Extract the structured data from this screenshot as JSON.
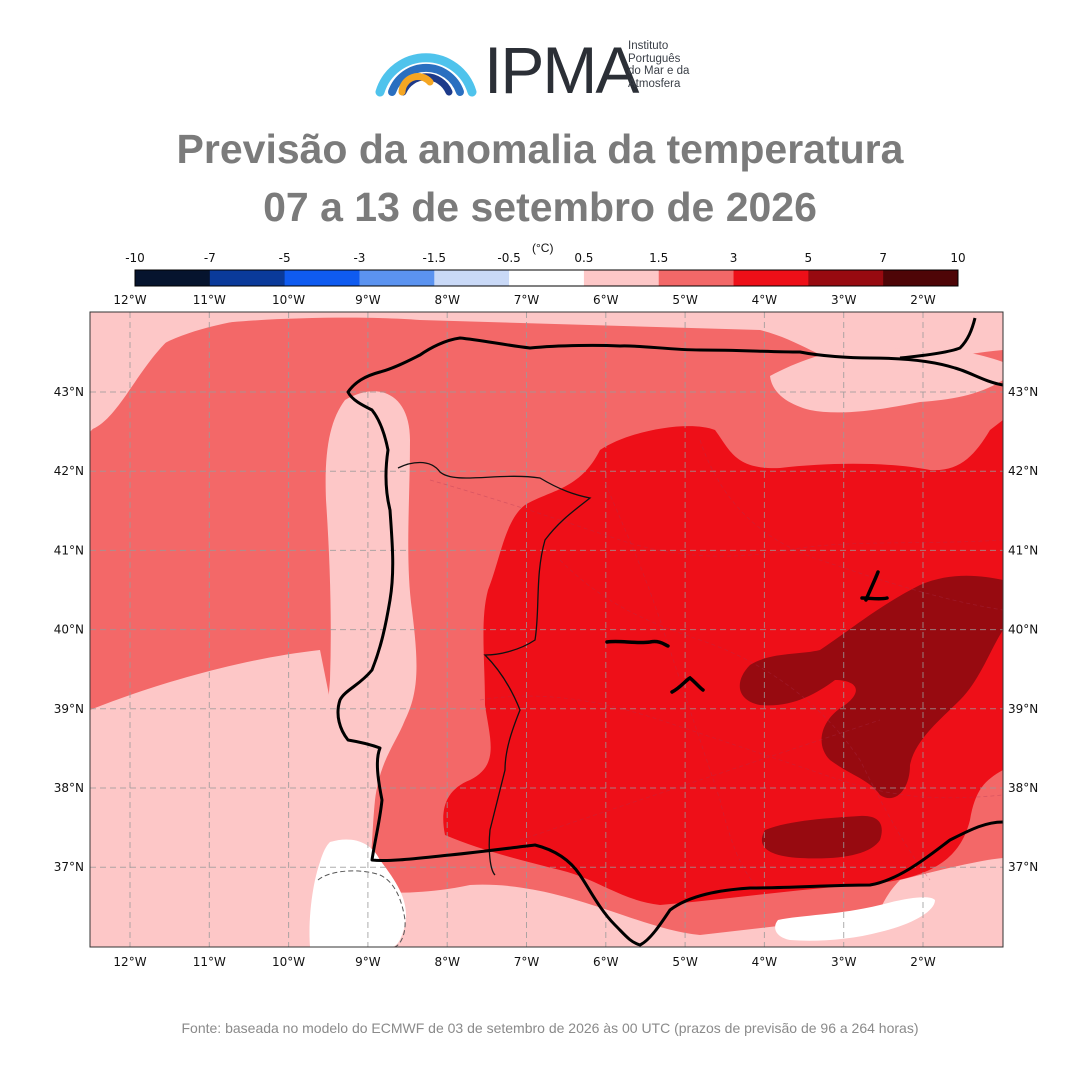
{
  "logo": {
    "name": "IPMA",
    "subtitle": [
      "Instituto",
      "Português",
      "do Mar e da",
      "Atmosfera"
    ]
  },
  "title": {
    "line1": "Previsão da anomalia da temperatura",
    "line2": "07 a 13 de setembro de 2026"
  },
  "colorbar": {
    "unit": "(°C)",
    "ticks": [
      "-10",
      "-7",
      "-5",
      "-3",
      "-1.5",
      "-0.5",
      "0.5",
      "1.5",
      "3",
      "5",
      "7",
      "10"
    ],
    "colors": [
      "#06142e",
      "#0a3a9a",
      "#0f5bf0",
      "#5b93f0",
      "#c9d9f7",
      "#ffffff",
      "#fdc7c7",
      "#f36868",
      "#ee0f18",
      "#970a10",
      "#4e0507"
    ]
  },
  "map": {
    "lon_labels": [
      "12°W",
      "11°W",
      "10°W",
      "9°W",
      "8°W",
      "7°W",
      "6°W",
      "5°W",
      "4°W",
      "3°W",
      "2°W"
    ],
    "lat_labels": [
      "43°N",
      "42°N",
      "41°N",
      "40°N",
      "39°N",
      "38°N",
      "37°N"
    ],
    "anomaly_colors": {
      "light": "#fdc7c7",
      "medium": "#f36868",
      "strong": "#ee0f18",
      "very_strong": "#970a10",
      "neutral": "#ffffff"
    }
  },
  "footer": {
    "source": "Fonte: baseada no modelo do ECMWF de 03 de setembro de 2026 às 00 UTC (prazos de previsão de 96 a 264 horas)"
  }
}
